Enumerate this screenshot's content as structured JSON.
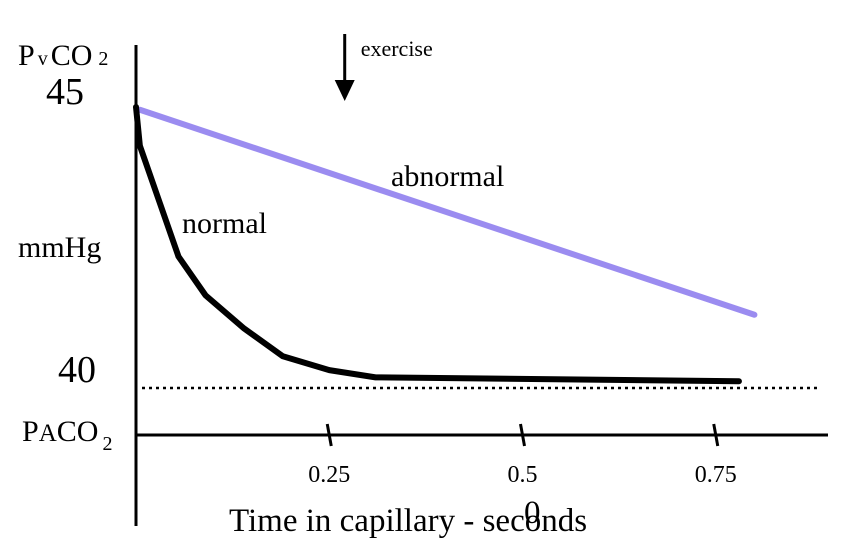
{
  "chart_data": {
    "type": "line",
    "title": "",
    "xlabel": "Time in capillary - seconds",
    "x_origin_label": "0",
    "xlim": [
      0,
      0.9
    ],
    "ylim": [
      38.3,
      45.6
    ],
    "x_ticks": [
      {
        "value": 0.25,
        "label": "0.25"
      },
      {
        "value": 0.5,
        "label": "0.5"
      },
      {
        "value": 0.75,
        "label": "0.75"
      }
    ],
    "y_labels": {
      "top_value": "45",
      "bottom_value": "40",
      "unit": "mmHg",
      "top_main": "P",
      "top_sub": "v",
      "top_rest": "CO",
      "top_subscript": "2",
      "bottom_main": "P",
      "bottom_mid": "A",
      "bottom_rest": "CO",
      "bottom_subscript": "2"
    },
    "reference_line": {
      "y": 40,
      "style": "dotted",
      "x_range": [
        0,
        0.885
      ]
    },
    "annotation": {
      "text": "exercise",
      "x": 0.27,
      "arrow": "down"
    },
    "series": [
      {
        "name": "normal",
        "color": "#000000",
        "x": [
          0,
          0.005,
          0.03,
          0.055,
          0.09,
          0.14,
          0.19,
          0.25,
          0.31,
          0.78
        ],
        "y": [
          45,
          44.3,
          43.3,
          42.3,
          41.6,
          41.0,
          40.5,
          40.25,
          40.12,
          40.05
        ]
      },
      {
        "name": "abnormal",
        "color": "#9b8cf0",
        "x": [
          0.005,
          0.8
        ],
        "y": [
          44.95,
          41.25
        ]
      }
    ]
  }
}
